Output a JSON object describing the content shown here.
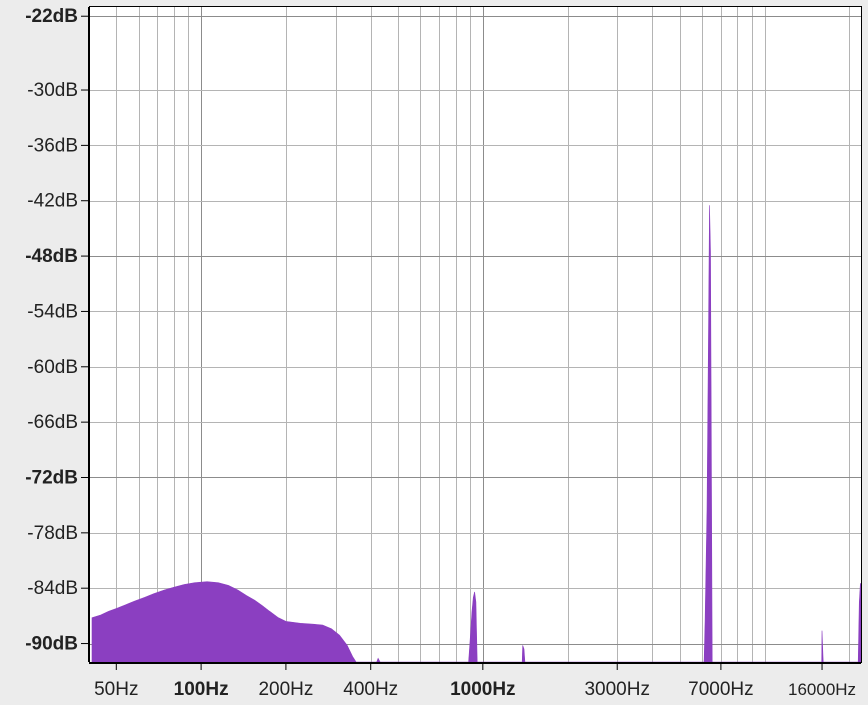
{
  "chart_data": {
    "type": "area",
    "title": "",
    "xlabel": "",
    "ylabel": "",
    "x_scale": "log",
    "xlim": [
      40,
      22000
    ],
    "ylim": [
      -92,
      -21
    ],
    "grid": true,
    "colors": {
      "fill": "#8b3fc1",
      "background": "#ffffff",
      "frame": "#ececec"
    },
    "y_ticks": [
      {
        "value": -22,
        "label": "-22dB",
        "major": true
      },
      {
        "value": -30,
        "label": "-30dB",
        "major": false
      },
      {
        "value": -36,
        "label": "-36dB",
        "major": false
      },
      {
        "value": -42,
        "label": "-42dB",
        "major": false
      },
      {
        "value": -48,
        "label": "-48dB",
        "major": true
      },
      {
        "value": -54,
        "label": "-54dB",
        "major": false
      },
      {
        "value": -60,
        "label": "-60dB",
        "major": false
      },
      {
        "value": -66,
        "label": "-66dB",
        "major": false
      },
      {
        "value": -72,
        "label": "-72dB",
        "major": true
      },
      {
        "value": -78,
        "label": "-78dB",
        "major": false
      },
      {
        "value": -84,
        "label": "-84dB",
        "major": false
      },
      {
        "value": -90,
        "label": "-90dB",
        "major": true
      }
    ],
    "x_ticks": [
      {
        "value": 50,
        "label": "50Hz",
        "major": false
      },
      {
        "value": 100,
        "label": "100Hz",
        "major": true
      },
      {
        "value": 200,
        "label": "200Hz",
        "major": false
      },
      {
        "value": 400,
        "label": "400Hz",
        "major": false
      },
      {
        "value": 1000,
        "label": "1000Hz",
        "major": true
      },
      {
        "value": 3000,
        "label": "3000Hz",
        "major": false
      },
      {
        "value": 7000,
        "label": "7000Hz",
        "major": false
      },
      {
        "value": 16000,
        "label": "16000Hz",
        "major": false
      }
    ],
    "x_grid_values": [
      50,
      60,
      70,
      80,
      90,
      100,
      200,
      300,
      400,
      500,
      600,
      700,
      800,
      900,
      1000,
      2000,
      3000,
      4000,
      5000,
      6000,
      7000,
      8000,
      9000,
      10000,
      20000
    ],
    "series": [
      {
        "values": [
          [
            41,
            -87.2
          ],
          [
            44,
            -86.9
          ],
          [
            47,
            -86.5
          ],
          [
            50,
            -86.2
          ],
          [
            54,
            -85.8
          ],
          [
            58,
            -85.4
          ],
          [
            63,
            -85.0
          ],
          [
            68,
            -84.6
          ],
          [
            74,
            -84.2
          ],
          [
            80,
            -83.9
          ],
          [
            87,
            -83.6
          ],
          [
            95,
            -83.4
          ],
          [
            105,
            -83.3
          ],
          [
            115,
            -83.4
          ],
          [
            125,
            -83.7
          ],
          [
            135,
            -84.2
          ],
          [
            145,
            -84.8
          ],
          [
            155,
            -85.3
          ],
          [
            165,
            -85.9
          ],
          [
            175,
            -86.5
          ],
          [
            188,
            -87.2
          ],
          [
            200,
            -87.6
          ],
          [
            225,
            -87.8
          ],
          [
            250,
            -87.9
          ],
          [
            270,
            -88.0
          ],
          [
            290,
            -88.4
          ],
          [
            310,
            -89.1
          ],
          [
            330,
            -90.2
          ],
          [
            345,
            -91.4
          ],
          [
            355,
            -92.0
          ],
          [
            420,
            -92.0
          ],
          [
            425,
            -91.6
          ],
          [
            432,
            -92.0
          ],
          [
            890,
            -92.0
          ],
          [
            900,
            -90.0
          ],
          [
            915,
            -86.5
          ],
          [
            925,
            -85.0
          ],
          [
            935,
            -84.4
          ],
          [
            945,
            -85.5
          ],
          [
            955,
            -92.0
          ],
          [
            1380,
            -92.0
          ],
          [
            1385,
            -90.2
          ],
          [
            1400,
            -90.6
          ],
          [
            1410,
            -92.0
          ],
          [
            6100,
            -92.0
          ],
          [
            6150,
            -87.5
          ],
          [
            6250,
            -75.6
          ],
          [
            6320,
            -57.7
          ],
          [
            6380,
            -42.5
          ],
          [
            6430,
            -47.5
          ],
          [
            6470,
            -68.0
          ],
          [
            6520,
            -92.0
          ],
          [
            15950,
            -92.0
          ],
          [
            16000,
            -88.6
          ],
          [
            16150,
            -92.0
          ],
          [
            21500,
            -92.0
          ],
          [
            21700,
            -85.5
          ],
          [
            21900,
            -83.5
          ],
          [
            22000,
            -83.5
          ]
        ]
      }
    ]
  }
}
